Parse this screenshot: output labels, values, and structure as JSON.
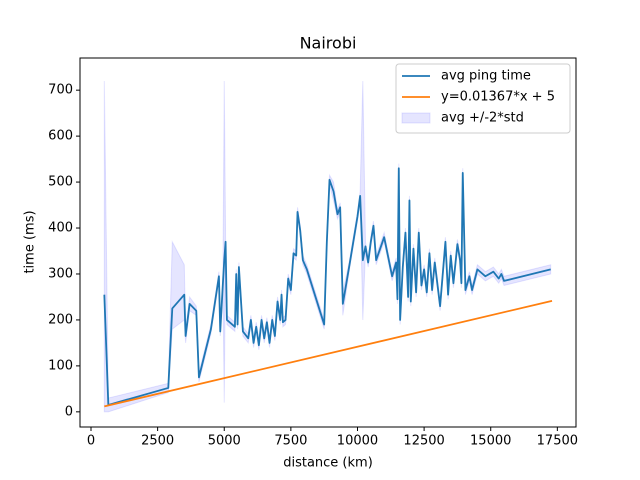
{
  "chart_data": {
    "type": "line",
    "title": "Nairobi",
    "xlabel": "distance (km)",
    "ylabel": "time (ms)",
    "xlim": [
      -413,
      18200
    ],
    "ylim": [
      -33,
      770
    ],
    "xticks": [
      0,
      2500,
      5000,
      7500,
      10000,
      12500,
      15000,
      17500
    ],
    "yticks": [
      0,
      100,
      200,
      300,
      400,
      500,
      600,
      700
    ],
    "legend": "upper right",
    "series": [
      {
        "name": "avg ping time",
        "color": "#1f77b4",
        "x": [
          500,
          650,
          2900,
          3050,
          3500,
          3550,
          3700,
          3950,
          4050,
          4500,
          4800,
          4850,
          4950,
          5000,
          5050,
          5100,
          5400,
          5450,
          5500,
          5550,
          5700,
          5900,
          6000,
          6100,
          6200,
          6300,
          6400,
          6500,
          6600,
          6700,
          6800,
          6900,
          7000,
          7100,
          7150,
          7200,
          7300,
          7400,
          7500,
          7600,
          7700,
          7750,
          7850,
          7950,
          8100,
          8750,
          8850,
          8950,
          9100,
          9250,
          9350,
          9450,
          9700,
          10000,
          10100,
          10200,
          10300,
          10400,
          10500,
          10600,
          10700,
          11000,
          11300,
          11450,
          11500,
          11550,
          11600,
          11700,
          11800,
          11900,
          11950,
          12000,
          12100,
          12200,
          12300,
          12400,
          12500,
          12600,
          12700,
          12800,
          12900,
          13100,
          13200,
          13300,
          13400,
          13500,
          13600,
          13750,
          13850,
          13900,
          13950,
          14050,
          14200,
          14300,
          14500,
          14800,
          15100,
          15300,
          15400,
          15500,
          17250
        ],
        "values": [
          255,
          15,
          52,
          225,
          255,
          165,
          235,
          220,
          75,
          180,
          295,
          175,
          280,
          330,
          370,
          200,
          185,
          300,
          190,
          315,
          175,
          160,
          200,
          150,
          185,
          145,
          200,
          160,
          195,
          150,
          200,
          165,
          240,
          200,
          255,
          195,
          200,
          290,
          265,
          345,
          340,
          435,
          395,
          330,
          310,
          190,
          370,
          505,
          480,
          430,
          445,
          235,
          320,
          425,
          470,
          330,
          360,
          325,
          370,
          405,
          330,
          380,
          295,
          325,
          245,
          530,
          200,
          315,
          390,
          250,
          460,
          240,
          355,
          260,
          390,
          275,
          310,
          260,
          345,
          265,
          325,
          230,
          300,
          370,
          255,
          340,
          280,
          365,
          330,
          280,
          520,
          265,
          295,
          265,
          310,
          295,
          305,
          290,
          300,
          285,
          310
        ]
      },
      {
        "name": "y=0.01367*x + 5",
        "color": "#ff7f0e",
        "x": [
          500,
          17300
        ],
        "values": [
          11.8,
          241.5
        ]
      }
    ],
    "band": {
      "name": "avg +/-2*std",
      "color": "blue",
      "alpha": 0.1,
      "lower": [
        0,
        0,
        42,
        180,
        200,
        150,
        220,
        210,
        65,
        170,
        285,
        165,
        270,
        20,
        360,
        190,
        175,
        290,
        180,
        305,
        165,
        150,
        190,
        140,
        175,
        135,
        190,
        150,
        185,
        140,
        190,
        155,
        230,
        190,
        245,
        185,
        190,
        280,
        255,
        335,
        330,
        425,
        385,
        320,
        300,
        180,
        360,
        495,
        460,
        420,
        435,
        210,
        310,
        415,
        460,
        200,
        350,
        315,
        360,
        395,
        320,
        370,
        285,
        315,
        235,
        520,
        190,
        305,
        380,
        240,
        450,
        230,
        345,
        250,
        380,
        265,
        300,
        250,
        335,
        255,
        315,
        220,
        290,
        360,
        245,
        330,
        270,
        355,
        320,
        270,
        510,
        255,
        285,
        255,
        300,
        285,
        295,
        280,
        290,
        275,
        300
      ],
      "upper": [
        720,
        30,
        62,
        370,
        320,
        180,
        250,
        230,
        85,
        190,
        305,
        185,
        290,
        720,
        380,
        210,
        195,
        310,
        200,
        325,
        185,
        170,
        210,
        160,
        195,
        155,
        210,
        170,
        205,
        160,
        210,
        175,
        250,
        210,
        265,
        205,
        210,
        300,
        275,
        355,
        350,
        445,
        405,
        340,
        320,
        200,
        380,
        515,
        500,
        440,
        455,
        260,
        330,
        435,
        480,
        720,
        370,
        335,
        380,
        415,
        340,
        390,
        305,
        335,
        255,
        540,
        210,
        325,
        400,
        260,
        470,
        250,
        365,
        270,
        400,
        285,
        320,
        270,
        355,
        275,
        335,
        240,
        310,
        380,
        265,
        350,
        290,
        375,
        340,
        290,
        530,
        275,
        305,
        275,
        320,
        305,
        315,
        300,
        310,
        295,
        320
      ]
    }
  }
}
